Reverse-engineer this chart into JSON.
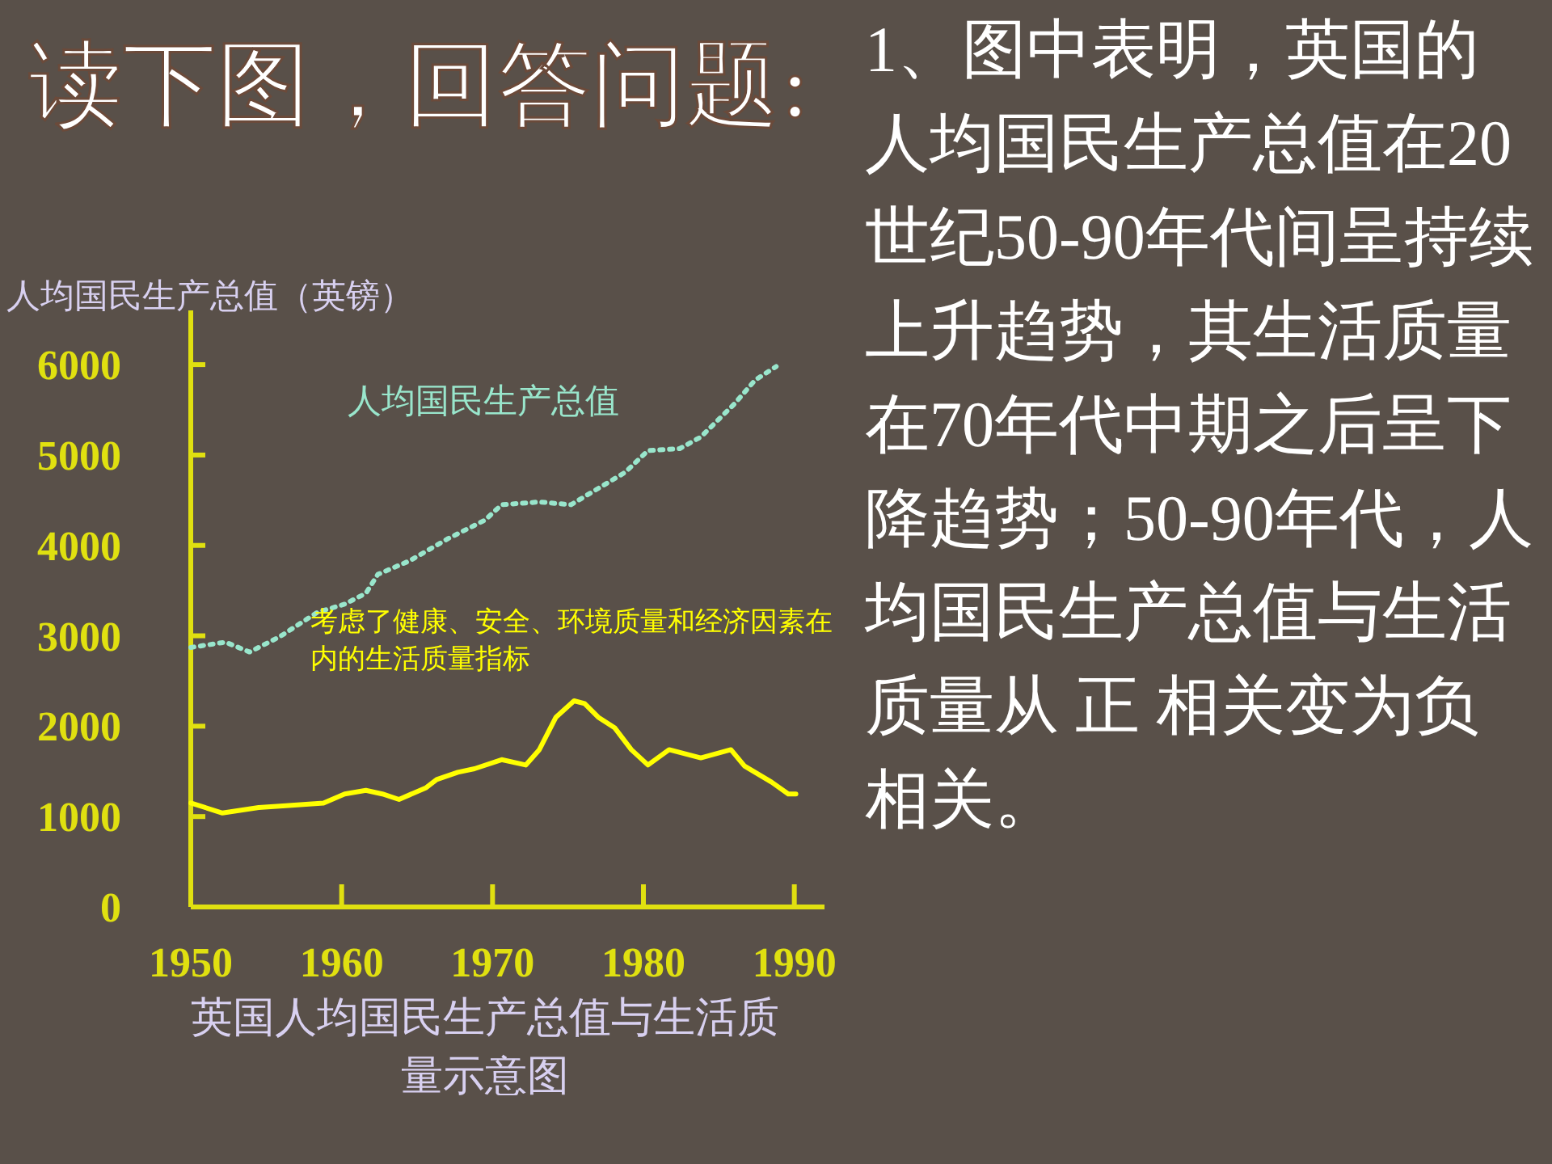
{
  "chart_data": {
    "type": "line",
    "title": "读下图，回答问题:",
    "ylabel": "人均国民生产总值（英镑）",
    "xlim": [
      1950,
      1992
    ],
    "ylim": [
      0,
      6600
    ],
    "xticks": [
      1950,
      1960,
      1970,
      1980,
      1990
    ],
    "yticks": [
      0,
      1000,
      2000,
      3000,
      4000,
      5000,
      6000
    ],
    "series": [
      {
        "name": "人均国民生产总值",
        "color": "#99e6cc",
        "line_style": "dotted",
        "x": [
          1950,
          1952.3,
          1953.9,
          1955.9,
          1958.4,
          1960.2,
          1961.6,
          1962.4,
          1964.5,
          1967,
          1969.5,
          1970.6,
          1973.1,
          1975.2,
          1976.7,
          1978.8,
          1980.3,
          1982.4,
          1983.8,
          1986,
          1987.4,
          1988.8
        ],
        "values": [
          2870,
          2930,
          2820,
          2990,
          3260,
          3350,
          3470,
          3680,
          3830,
          4070,
          4280,
          4450,
          4480,
          4450,
          4600,
          4810,
          5050,
          5070,
          5200,
          5560,
          5830,
          5980
        ]
      },
      {
        "name": "考虑了健康、安全、环境质量和经济因素在内的生活质量指标",
        "color": "#ffff00",
        "line_style": "solid",
        "x": [
          1950,
          1952.1,
          1954.5,
          1956.3,
          1958.8,
          1960.2,
          1961.6,
          1962.7,
          1963.8,
          1965.6,
          1966.3,
          1967.7,
          1968.8,
          1970.6,
          1972.2,
          1973.1,
          1974.2,
          1975.4,
          1976.1,
          1977,
          1978.1,
          1979.2,
          1980.3,
          1981.7,
          1983.8,
          1985.8,
          1986.7,
          1988.5,
          1989.6,
          1990.1
        ],
        "values": [
          1150,
          1040,
          1100,
          1120,
          1150,
          1250,
          1290,
          1250,
          1190,
          1320,
          1410,
          1490,
          1530,
          1630,
          1570,
          1740,
          2100,
          2280,
          2250,
          2100,
          1980,
          1740,
          1570,
          1740,
          1650,
          1740,
          1560,
          1380,
          1250,
          1250
        ]
      }
    ],
    "annotations": [
      "英国人均国民生产总值与生活质量示意图",
      "1、图中表明，英国的人均国民生产总值在20世纪50-90年代间呈持续上升趋势，其生活质量在70年代中期之后呈下降趋势；50-90年代，人均国民生产总值与生活质量从 正 相关变为负相关。"
    ]
  }
}
